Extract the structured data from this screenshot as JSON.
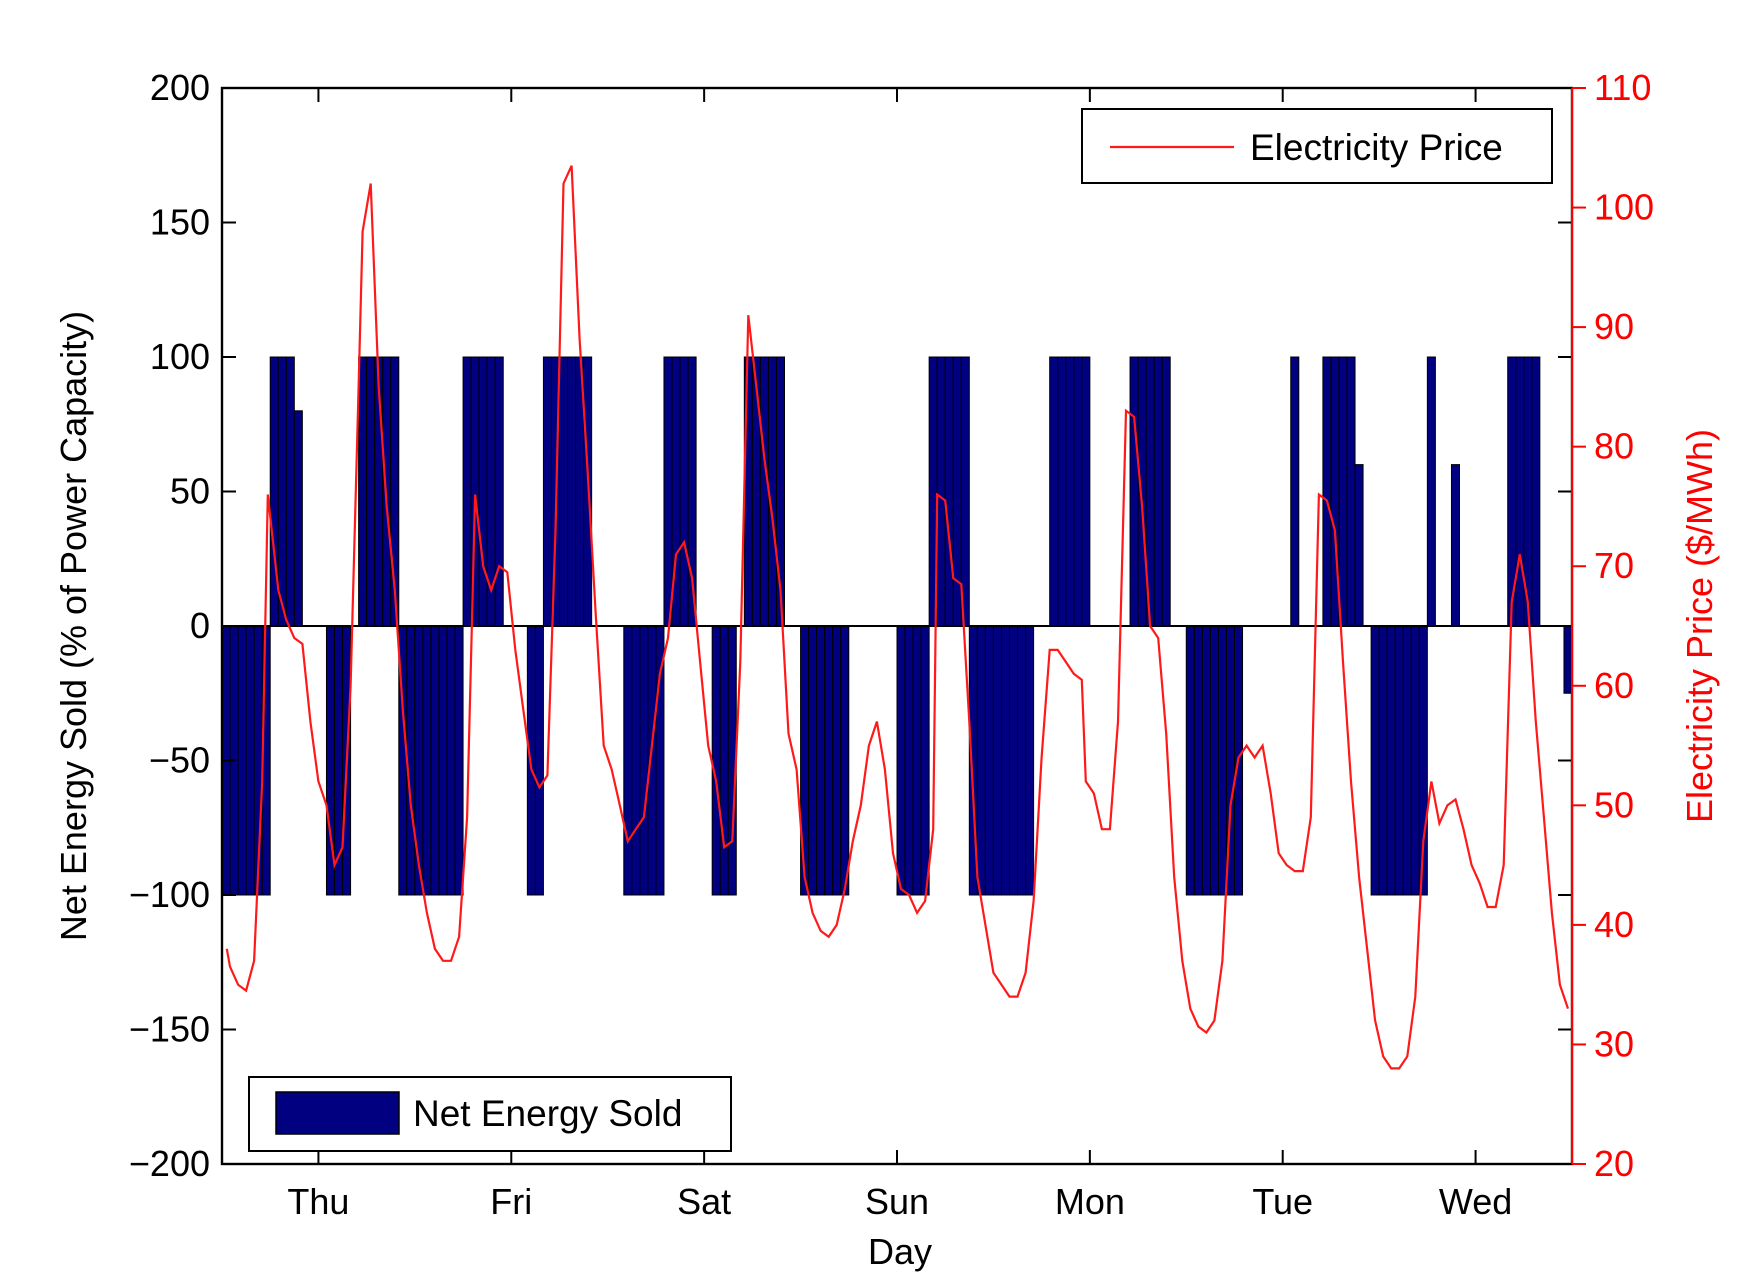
{
  "colors": {
    "bar_fill": "#000080",
    "bar_stroke": "#000000",
    "price_line": "#ff1a1a",
    "right_axis": "#ff0000",
    "axes": "#000000",
    "background": "#ffffff"
  },
  "chart_data": {
    "type": "bar",
    "xlabel": "Day",
    "x_tick_labels": [
      "Thu",
      "Fri",
      "Sat",
      "Sun",
      "Mon",
      "Tue",
      "Wed"
    ],
    "left_axis": {
      "label": "Net Energy Sold (% of Power Capacity)",
      "ylim": [
        -200,
        200
      ],
      "ticks": [
        -200,
        -150,
        -100,
        -50,
        0,
        50,
        100,
        150,
        200
      ],
      "tick_labels": [
        "−200",
        "−150",
        "−100",
        "−50",
        "0",
        "50",
        "100",
        "150",
        "200"
      ]
    },
    "right_axis": {
      "label": "Electricity Price ($/MWh)",
      "ylim": [
        20,
        110
      ],
      "ticks": [
        20,
        30,
        40,
        50,
        60,
        70,
        80,
        90,
        100,
        110
      ],
      "tick_labels": [
        "20",
        "30",
        "40",
        "50",
        "60",
        "70",
        "80",
        "90",
        "100",
        "110"
      ]
    },
    "x_unit": "hours since start of Thursday",
    "xlim": [
      -12,
      156
    ],
    "day_tick_hours": [
      0,
      24,
      48,
      72,
      96,
      120,
      144
    ],
    "legend": {
      "bars": "Net Energy Sold",
      "line": "Electricity Price",
      "bars_position": "bottom-left",
      "line_position": "top-right"
    },
    "series": [
      {
        "name": "Net Energy Sold",
        "kind": "bar",
        "axis": "left",
        "hour_values": [
          [
            -12,
            -100
          ],
          [
            -11,
            -100
          ],
          [
            -10,
            -100
          ],
          [
            -9,
            -100
          ],
          [
            -8,
            -100
          ],
          [
            -7,
            -100
          ],
          [
            -6,
            100
          ],
          [
            -5,
            100
          ],
          [
            -4,
            100
          ],
          [
            -3,
            80
          ],
          [
            1,
            -100
          ],
          [
            2,
            -100
          ],
          [
            3,
            -100
          ],
          [
            5,
            100
          ],
          [
            6,
            100
          ],
          [
            7,
            100
          ],
          [
            8,
            100
          ],
          [
            9,
            100
          ],
          [
            10,
            -100
          ],
          [
            11,
            -100
          ],
          [
            12,
            -100
          ],
          [
            13,
            -100
          ],
          [
            14,
            -100
          ],
          [
            15,
            -100
          ],
          [
            16,
            -100
          ],
          [
            17,
            -100
          ],
          [
            18,
            100
          ],
          [
            19,
            100
          ],
          [
            20,
            100
          ],
          [
            21,
            100
          ],
          [
            22,
            100
          ],
          [
            26,
            -100
          ],
          [
            27,
            -100
          ],
          [
            28,
            100
          ],
          [
            29,
            100
          ],
          [
            30,
            100
          ],
          [
            31,
            100
          ],
          [
            32,
            100
          ],
          [
            33,
            100
          ],
          [
            38,
            -100
          ],
          [
            39,
            -100
          ],
          [
            40,
            -100
          ],
          [
            41,
            -100
          ],
          [
            42,
            -100
          ],
          [
            43,
            100
          ],
          [
            44,
            100
          ],
          [
            45,
            100
          ],
          [
            46,
            100
          ],
          [
            49,
            -100
          ],
          [
            50,
            -100
          ],
          [
            51,
            -100
          ],
          [
            53,
            100
          ],
          [
            54,
            100
          ],
          [
            55,
            100
          ],
          [
            56,
            100
          ],
          [
            57,
            100
          ],
          [
            60,
            -100
          ],
          [
            61,
            -100
          ],
          [
            62,
            -100
          ],
          [
            63,
            -100
          ],
          [
            64,
            -100
          ],
          [
            65,
            -100
          ],
          [
            72,
            -100
          ],
          [
            73,
            -100
          ],
          [
            74,
            -100
          ],
          [
            75,
            -100
          ],
          [
            76,
            100
          ],
          [
            77,
            100
          ],
          [
            78,
            100
          ],
          [
            79,
            100
          ],
          [
            80,
            100
          ],
          [
            81,
            -100
          ],
          [
            82,
            -100
          ],
          [
            83,
            -100
          ],
          [
            84,
            -100
          ],
          [
            85,
            -100
          ],
          [
            86,
            -100
          ],
          [
            87,
            -100
          ],
          [
            88,
            -100
          ],
          [
            91,
            100
          ],
          [
            92,
            100
          ],
          [
            93,
            100
          ],
          [
            94,
            100
          ],
          [
            95,
            100
          ],
          [
            101,
            100
          ],
          [
            102,
            100
          ],
          [
            103,
            100
          ],
          [
            104,
            100
          ],
          [
            105,
            100
          ],
          [
            108,
            -100
          ],
          [
            109,
            -100
          ],
          [
            110,
            -100
          ],
          [
            111,
            -100
          ],
          [
            112,
            -100
          ],
          [
            113,
            -100
          ],
          [
            114,
            -100
          ],
          [
            121,
            100
          ],
          [
            125,
            100
          ],
          [
            126,
            100
          ],
          [
            127,
            100
          ],
          [
            128,
            100
          ],
          [
            129,
            60
          ],
          [
            131,
            -100
          ],
          [
            132,
            -100
          ],
          [
            133,
            -100
          ],
          [
            134,
            -100
          ],
          [
            135,
            -100
          ],
          [
            136,
            -100
          ],
          [
            137,
            -100
          ],
          [
            138,
            100
          ],
          [
            141,
            60
          ],
          [
            148,
            100
          ],
          [
            149,
            100
          ],
          [
            150,
            100
          ],
          [
            151,
            100
          ],
          [
            155,
            -25
          ],
          [
            156,
            -100
          ]
        ]
      },
      {
        "name": "Electricity Price",
        "kind": "line",
        "axis": "right",
        "points": [
          [
            -11.4,
            38
          ],
          [
            -11,
            36.5
          ],
          [
            -10,
            35
          ],
          [
            -9,
            34.5
          ],
          [
            -8,
            37
          ],
          [
            -7,
            52
          ],
          [
            -6.3,
            76
          ],
          [
            -5,
            68
          ],
          [
            -4,
            65.5
          ],
          [
            -3,
            64
          ],
          [
            -2,
            63.5
          ],
          [
            -1,
            57
          ],
          [
            0,
            52
          ],
          [
            1,
            50
          ],
          [
            2,
            45
          ],
          [
            3,
            46.5
          ],
          [
            4,
            60
          ],
          [
            5,
            85
          ],
          [
            5.5,
            98
          ],
          [
            6.5,
            102
          ],
          [
            7.5,
            85
          ],
          [
            8.5,
            75
          ],
          [
            9.5,
            68
          ],
          [
            10.5,
            58
          ],
          [
            11.5,
            50
          ],
          [
            12.5,
            45
          ],
          [
            13.5,
            41
          ],
          [
            14.5,
            38
          ],
          [
            15.5,
            37
          ],
          [
            16.5,
            37
          ],
          [
            17.5,
            39
          ],
          [
            18.5,
            49
          ],
          [
            19.5,
            76
          ],
          [
            20.5,
            70
          ],
          [
            21.5,
            68
          ],
          [
            22.5,
            70
          ],
          [
            23.5,
            69.5
          ],
          [
            24.5,
            63
          ],
          [
            25.5,
            58
          ],
          [
            26.5,
            53
          ],
          [
            27.5,
            51.5
          ],
          [
            28.5,
            52.5
          ],
          [
            29.5,
            73
          ],
          [
            30.5,
            102
          ],
          [
            31.5,
            103.5
          ],
          [
            32.5,
            89
          ],
          [
            33.5,
            78
          ],
          [
            34.5,
            66
          ],
          [
            35.5,
            55
          ],
          [
            36.5,
            53
          ],
          [
            37.5,
            50
          ],
          [
            38.5,
            47
          ],
          [
            39.5,
            48
          ],
          [
            40.5,
            49
          ],
          [
            41.5,
            55
          ],
          [
            42.5,
            61
          ],
          [
            43.5,
            64
          ],
          [
            44.5,
            71
          ],
          [
            45.5,
            72
          ],
          [
            46.5,
            69
          ],
          [
            47.5,
            62
          ],
          [
            48.5,
            55
          ],
          [
            49.5,
            52
          ],
          [
            50.5,
            46.5
          ],
          [
            51.5,
            47
          ],
          [
            52.5,
            62
          ],
          [
            53.5,
            91
          ],
          [
            54.5,
            85
          ],
          [
            55.5,
            79
          ],
          [
            56.5,
            74
          ],
          [
            57.5,
            68
          ],
          [
            58.5,
            56
          ],
          [
            59.5,
            53
          ],
          [
            60.5,
            44
          ],
          [
            61.5,
            41
          ],
          [
            62.5,
            39.5
          ],
          [
            63.5,
            39
          ],
          [
            64.5,
            40
          ],
          [
            65.5,
            43
          ],
          [
            66.5,
            47
          ],
          [
            67.5,
            50
          ],
          [
            68.5,
            55
          ],
          [
            69.5,
            57
          ],
          [
            70.5,
            53
          ],
          [
            71.5,
            46
          ],
          [
            72.5,
            43
          ],
          [
            73.5,
            42.5
          ],
          [
            74.5,
            41
          ],
          [
            75.5,
            42
          ],
          [
            76.5,
            48
          ],
          [
            77,
            76
          ],
          [
            78,
            75.5
          ],
          [
            79,
            69
          ],
          [
            80,
            68.5
          ],
          [
            81,
            57
          ],
          [
            82,
            44
          ],
          [
            83,
            40
          ],
          [
            84,
            36
          ],
          [
            85,
            35
          ],
          [
            86,
            34
          ],
          [
            87,
            34
          ],
          [
            88,
            36
          ],
          [
            89,
            42
          ],
          [
            90,
            54
          ],
          [
            91,
            63
          ],
          [
            92,
            63
          ],
          [
            93,
            62
          ],
          [
            94,
            61
          ],
          [
            95,
            60.5
          ],
          [
            95.5,
            52
          ],
          [
            96.5,
            51
          ],
          [
            97.5,
            48
          ],
          [
            98.5,
            48
          ],
          [
            99.5,
            57
          ],
          [
            100.5,
            83
          ],
          [
            101.5,
            82.5
          ],
          [
            102.5,
            75
          ],
          [
            103.5,
            65
          ],
          [
            104.5,
            64
          ],
          [
            105.5,
            56
          ],
          [
            106.5,
            44
          ],
          [
            107.5,
            37
          ],
          [
            108.5,
            33
          ],
          [
            109.5,
            31.5
          ],
          [
            110.5,
            31
          ],
          [
            111.5,
            32
          ],
          [
            112.5,
            37
          ],
          [
            113.5,
            50
          ],
          [
            114.5,
            54
          ],
          [
            115.5,
            55
          ],
          [
            116.5,
            54
          ],
          [
            117.5,
            55
          ],
          [
            118.5,
            51
          ],
          [
            119.5,
            46
          ],
          [
            120.5,
            45
          ],
          [
            121.5,
            44.5
          ],
          [
            122.5,
            44.5
          ],
          [
            123.5,
            49
          ],
          [
            124.5,
            76
          ],
          [
            125.5,
            75.5
          ],
          [
            126.5,
            73
          ],
          [
            127.5,
            62
          ],
          [
            128.5,
            52
          ],
          [
            129.5,
            44
          ],
          [
            130.5,
            38
          ],
          [
            131.5,
            32
          ],
          [
            132.5,
            29
          ],
          [
            133.5,
            28
          ],
          [
            134.5,
            28
          ],
          [
            135.5,
            29
          ],
          [
            136.5,
            34
          ],
          [
            137.5,
            47
          ],
          [
            138.5,
            52
          ],
          [
            139.5,
            48.5
          ],
          [
            140.5,
            50
          ],
          [
            141.5,
            50.5
          ],
          [
            142.5,
            48
          ],
          [
            143.5,
            45
          ],
          [
            144.5,
            43.5
          ],
          [
            145.5,
            41.5
          ],
          [
            146.5,
            41.5
          ],
          [
            147.5,
            45
          ],
          [
            148.5,
            67
          ],
          [
            149.5,
            71
          ],
          [
            150.5,
            67
          ],
          [
            151.5,
            57
          ],
          [
            152.5,
            49
          ],
          [
            153.5,
            41
          ],
          [
            154.5,
            35
          ],
          [
            155.5,
            33
          ]
        ]
      }
    ]
  }
}
